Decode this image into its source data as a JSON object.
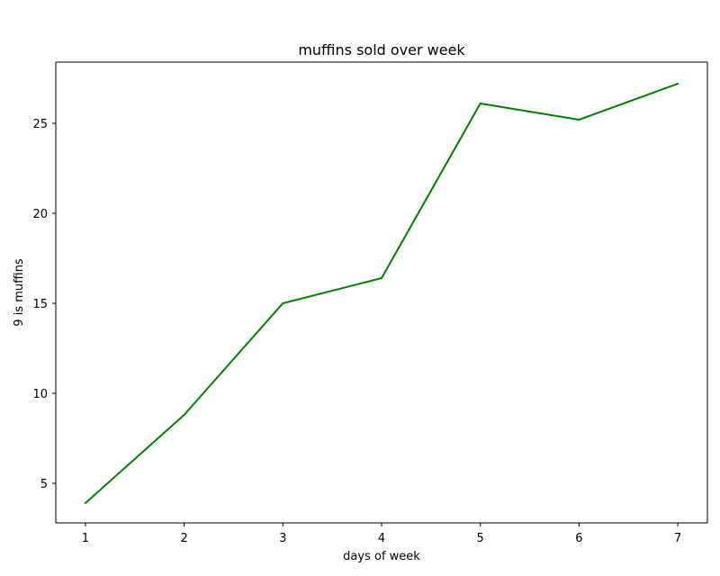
{
  "chart_data": {
    "type": "line",
    "title": "muffins sold over week",
    "xlabel": "days of week",
    "ylabel": "9 is muffins",
    "x": [
      1,
      2,
      3,
      4,
      5,
      6,
      7
    ],
    "series": [
      {
        "values": [
          3.9,
          8.8,
          15.0,
          16.4,
          26.1,
          25.2,
          27.2
        ],
        "color": "#008000"
      }
    ],
    "xlim": [
      0.7,
      7.3
    ],
    "ylim": [
      2.8,
      28.4
    ],
    "xticks": [
      1,
      2,
      3,
      4,
      5,
      6,
      7
    ],
    "yticks": [
      5,
      10,
      15,
      20,
      25
    ],
    "xtick_labels": [
      "1",
      "2",
      "3",
      "4",
      "5",
      "6",
      "7"
    ],
    "ytick_labels": [
      "5",
      "10",
      "15",
      "20",
      "25"
    ],
    "grid": false,
    "legend": "none"
  }
}
